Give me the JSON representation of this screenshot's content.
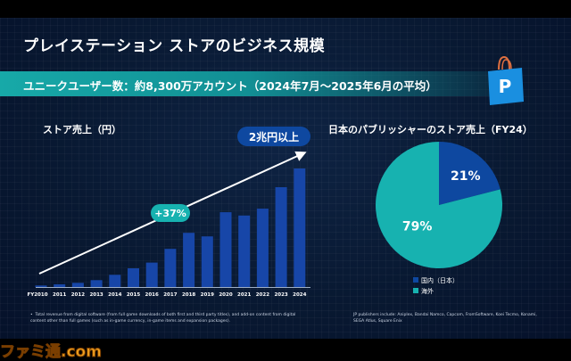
{
  "title": "プレイステーション ストアのビジネス規模",
  "banner": "ユニークユーザー数：約8,300万アカウント（2024年7月～2025年6月の平均）",
  "icon": "playstation-store-bag-icon",
  "colors": {
    "bar": "#1746a8",
    "teal": "#17b2b0",
    "navy": "#0e48a0"
  },
  "chart_data": [
    {
      "type": "bar",
      "title": "ストア売上（円）",
      "categories": [
        "FY2010",
        "2011",
        "2012",
        "2013",
        "2014",
        "2015",
        "2016",
        "2017",
        "2018",
        "2019",
        "2020",
        "2021",
        "2022",
        "2023",
        "2024"
      ],
      "values_relative_to_fy2024": [
        1.3,
        2.3,
        3.5,
        5.8,
        10.3,
        15.8,
        20.6,
        32.2,
        45.7,
        42.7,
        63.1,
        60.3,
        66.1,
        84.2,
        100
      ],
      "annotations": {
        "growth": "+37%",
        "top": "2兆円以上"
      },
      "grid": false
    },
    {
      "type": "pie",
      "title": "日本のパブリッシャーのストア売上（FY24）",
      "slices": [
        {
          "name": "国内（日本）",
          "value": 21,
          "label": "21%",
          "color": "#0e48a0"
        },
        {
          "name": "海外",
          "value": 79,
          "label": "79%",
          "color": "#17b2b0"
        }
      ],
      "legend": "bottom"
    }
  ],
  "notes": {
    "left": "Total revenue from digital software (from full game downloads of both first and third party titles), and add-on content from digital content other than full games (such as in-game currency, in-game items and expansion packages).",
    "right": "JP publishers include: Aniplex, Bandai Namco, Capcom, FromSoftware, Koei Tecmo, Konami, SEGA Atlus, Square Enix"
  },
  "watermark": "ファミ通.com"
}
